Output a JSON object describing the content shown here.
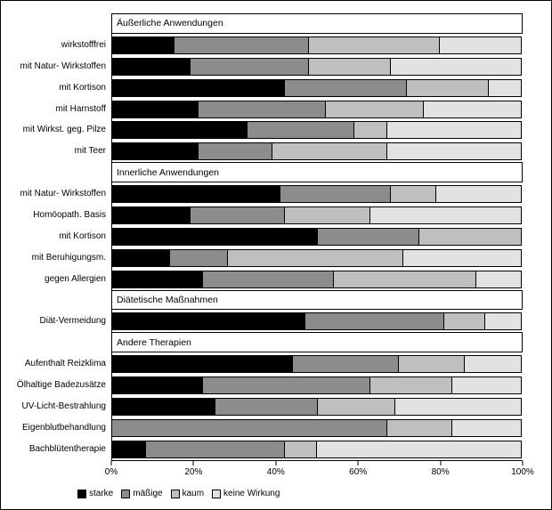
{
  "chart_data": {
    "type": "bar",
    "orientation": "horizontal",
    "stacked": true,
    "xlim": [
      0,
      100
    ],
    "x_ticks": [
      "0%",
      "20%",
      "40%",
      "60%",
      "80%",
      "100%"
    ],
    "x_tick_values": [
      0,
      20,
      40,
      60,
      80,
      100
    ],
    "legend": [
      "starke",
      "mäßige",
      "kaum",
      "keine Wirkung"
    ],
    "legend_position": "bottom-left",
    "grid": false,
    "colors": [
      "#000000",
      "#8c8c8c",
      "#bfbfbf",
      "#e2e2e2"
    ],
    "groups": [
      {
        "header": "Äußerliche Anwendungen",
        "rows": [
          {
            "label": "wirkstofffrei",
            "values": [
              15,
              33,
              32,
              20
            ]
          },
          {
            "label": "mit Natur- Wirkstoffen",
            "values": [
              19,
              29,
              20,
              32
            ]
          },
          {
            "label": "mit Kortison",
            "values": [
              42,
              30,
              20,
              8
            ]
          },
          {
            "label": "mit Harnstoff",
            "values": [
              21,
              31,
              24,
              24
            ]
          },
          {
            "label": "mit Wirkst. geg. Pilze",
            "values": [
              33,
              26,
              8,
              33
            ]
          },
          {
            "label": "mit Teer",
            "values": [
              21,
              18,
              28,
              33
            ]
          }
        ]
      },
      {
        "header": "Innerliche Anwendungen",
        "rows": [
          {
            "label": "mit Natur- Wirkstoffen",
            "values": [
              41,
              27,
              11,
              21
            ]
          },
          {
            "label": "Homöopath. Basis",
            "values": [
              19,
              23,
              21,
              37
            ]
          },
          {
            "label": "mit Kortison",
            "values": [
              50,
              25,
              25,
              0
            ]
          },
          {
            "label": "mit Beruhigungsm.",
            "values": [
              14,
              14,
              43,
              29
            ]
          },
          {
            "label": "gegen Allergien",
            "values": [
              22,
              32,
              35,
              11
            ]
          }
        ]
      },
      {
        "header": "Diätetische Maßnahmen",
        "rows": [
          {
            "label": "Diät-Vermeidung",
            "values": [
              47,
              34,
              10,
              9
            ]
          }
        ]
      },
      {
        "header": "Andere Therapien",
        "rows": [
          {
            "label": "Aufenthalt Reizklima",
            "values": [
              44,
              26,
              16,
              14
            ]
          },
          {
            "label": "Ölhaltige Badezusätze",
            "values": [
              22,
              41,
              20,
              17
            ]
          },
          {
            "label": "UV-Licht-Bestrahlung",
            "values": [
              25,
              25,
              19,
              31
            ]
          },
          {
            "label": "Eigenblutbehandlung",
            "values": [
              0,
              67,
              16,
              17
            ]
          },
          {
            "label": "Bachblütentherapie",
            "values": [
              8,
              34,
              8,
              50
            ]
          }
        ]
      }
    ]
  }
}
